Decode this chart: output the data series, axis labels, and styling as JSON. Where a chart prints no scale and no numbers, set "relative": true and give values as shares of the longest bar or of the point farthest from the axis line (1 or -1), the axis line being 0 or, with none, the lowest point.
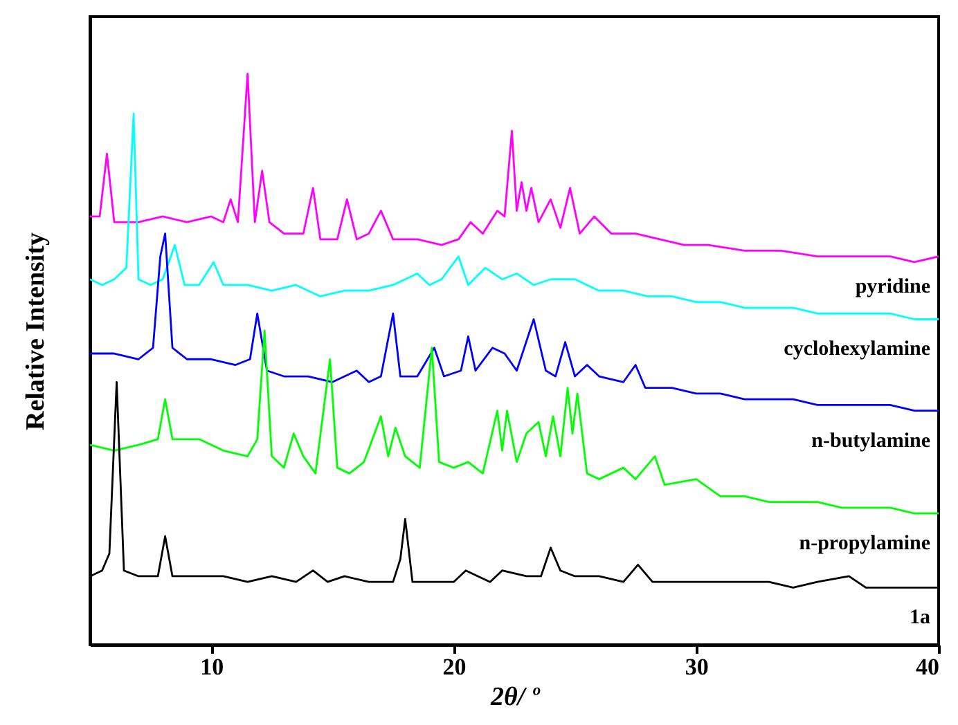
{
  "chart_data": {
    "type": "line",
    "relative": true,
    "xlabel": "2θ/ º",
    "ylabel": "Relative Intensity",
    "xlim": [
      5,
      40
    ],
    "xticks": [
      10,
      20,
      30,
      40
    ],
    "legend": false,
    "grid": false,
    "series": [
      {
        "name": "pyridine",
        "color": "#ff00ff",
        "x": [
          5,
          5.4,
          5.7,
          6.0,
          7.0,
          8.0,
          9.0,
          10.0,
          10.5,
          10.8,
          11.1,
          11.5,
          11.8,
          12.1,
          12.4,
          13.0,
          13.8,
          14.2,
          14.5,
          15.2,
          15.6,
          16.0,
          16.5,
          17.0,
          17.5,
          18.5,
          19.5,
          20.2,
          20.7,
          21.2,
          21.8,
          22.1,
          22.4,
          22.6,
          22.8,
          23.0,
          23.2,
          23.5,
          24.0,
          24.4,
          24.8,
          25.2,
          25.8,
          26.5,
          27.5,
          28.5,
          29.5,
          30.5,
          32.0,
          33.5,
          35.0,
          36.5,
          38.0,
          39.0,
          40.0
        ],
        "values": [
          0.75,
          0.75,
          0.86,
          0.74,
          0.74,
          0.75,
          0.74,
          0.75,
          0.74,
          0.78,
          0.74,
          1.0,
          0.74,
          0.83,
          0.74,
          0.72,
          0.72,
          0.8,
          0.71,
          0.71,
          0.78,
          0.71,
          0.72,
          0.76,
          0.71,
          0.71,
          0.7,
          0.71,
          0.74,
          0.72,
          0.76,
          0.75,
          0.9,
          0.76,
          0.81,
          0.76,
          0.8,
          0.74,
          0.78,
          0.73,
          0.8,
          0.72,
          0.75,
          0.72,
          0.72,
          0.71,
          0.7,
          0.7,
          0.69,
          0.69,
          0.68,
          0.68,
          0.68,
          0.67,
          0.68
        ]
      },
      {
        "name": "cyclohexylamine",
        "color": "#00ffff",
        "x": [
          5,
          5.5,
          6.0,
          6.5,
          6.8,
          7.0,
          7.5,
          8.0,
          8.5,
          8.9,
          9.5,
          10.1,
          10.5,
          11.5,
          12.5,
          13.5,
          14.5,
          15.5,
          16.5,
          17.5,
          18.5,
          19.0,
          19.5,
          20.2,
          20.6,
          21.3,
          22.0,
          22.6,
          23.3,
          24.0,
          25.0,
          26.0,
          27.0,
          28.0,
          29.0,
          30.0,
          31.0,
          32.0,
          33.0,
          34.0,
          35.0,
          36.0,
          37.0,
          38.0,
          39.0,
          40.0
        ],
        "values": [
          0.64,
          0.63,
          0.64,
          0.66,
          0.93,
          0.64,
          0.63,
          0.64,
          0.7,
          0.63,
          0.63,
          0.67,
          0.63,
          0.63,
          0.62,
          0.63,
          0.61,
          0.62,
          0.62,
          0.63,
          0.65,
          0.63,
          0.64,
          0.68,
          0.63,
          0.66,
          0.64,
          0.65,
          0.63,
          0.64,
          0.64,
          0.62,
          0.62,
          0.61,
          0.61,
          0.6,
          0.6,
          0.59,
          0.59,
          0.59,
          0.58,
          0.58,
          0.58,
          0.58,
          0.57,
          0.57
        ]
      },
      {
        "name": "n-butylamine",
        "color": "#0000ff",
        "x": [
          5,
          6,
          7,
          7.6,
          7.9,
          8.1,
          8.4,
          9.0,
          10.0,
          11.0,
          11.6,
          11.9,
          12.3,
          13.0,
          14.0,
          15.0,
          16.0,
          16.5,
          17.0,
          17.5,
          17.8,
          18.5,
          19.2,
          19.6,
          20.3,
          20.6,
          20.9,
          21.6,
          22.1,
          22.6,
          23.3,
          23.8,
          24.2,
          24.6,
          25.0,
          25.5,
          26.0,
          27.0,
          27.5,
          27.9,
          29.0,
          30.0,
          31.0,
          32.0,
          33.0,
          34.0,
          35.0,
          36.0,
          37.0,
          38.0,
          39.0,
          40.0
        ],
        "values": [
          0.51,
          0.51,
          0.5,
          0.52,
          0.68,
          0.72,
          0.52,
          0.5,
          0.5,
          0.49,
          0.5,
          0.58,
          0.48,
          0.47,
          0.47,
          0.46,
          0.48,
          0.46,
          0.47,
          0.58,
          0.47,
          0.47,
          0.52,
          0.47,
          0.48,
          0.54,
          0.48,
          0.52,
          0.51,
          0.48,
          0.57,
          0.48,
          0.47,
          0.53,
          0.47,
          0.49,
          0.47,
          0.46,
          0.49,
          0.45,
          0.45,
          0.44,
          0.44,
          0.43,
          0.43,
          0.43,
          0.42,
          0.42,
          0.42,
          0.42,
          0.41,
          0.41
        ]
      },
      {
        "name": "n-propylamine",
        "color": "#00ff00",
        "x": [
          5,
          6,
          7,
          7.8,
          8.1,
          8.4,
          9.5,
          10.5,
          11.5,
          11.9,
          12.2,
          12.5,
          13.0,
          13.4,
          13.8,
          14.3,
          14.9,
          15.2,
          15.7,
          16.3,
          17.0,
          17.3,
          17.6,
          18.0,
          18.6,
          19.1,
          19.4,
          20.0,
          20.6,
          21.2,
          21.8,
          22.0,
          22.2,
          22.6,
          23.0,
          23.5,
          23.8,
          24.1,
          24.4,
          24.7,
          24.9,
          25.1,
          25.5,
          26.0,
          27.0,
          27.5,
          28.3,
          28.7,
          30.0,
          31.0,
          32.0,
          33.0,
          34.0,
          35.0,
          36.0,
          37.0,
          38.0,
          39.0,
          40.0
        ],
        "values": [
          0.35,
          0.34,
          0.35,
          0.36,
          0.43,
          0.36,
          0.36,
          0.34,
          0.33,
          0.36,
          0.55,
          0.33,
          0.31,
          0.37,
          0.33,
          0.3,
          0.5,
          0.31,
          0.3,
          0.32,
          0.4,
          0.33,
          0.38,
          0.33,
          0.31,
          0.52,
          0.32,
          0.31,
          0.32,
          0.3,
          0.41,
          0.34,
          0.41,
          0.32,
          0.37,
          0.39,
          0.33,
          0.4,
          0.33,
          0.45,
          0.37,
          0.44,
          0.3,
          0.29,
          0.31,
          0.29,
          0.33,
          0.28,
          0.29,
          0.26,
          0.26,
          0.25,
          0.25,
          0.25,
          0.24,
          0.24,
          0.24,
          0.23,
          0.23
        ]
      },
      {
        "name": "1a",
        "color": "#000000",
        "x": [
          5.0,
          5.5,
          5.8,
          6.1,
          6.4,
          7.0,
          7.8,
          8.1,
          8.4,
          9.5,
          10.5,
          11.5,
          12.5,
          13.5,
          14.2,
          14.8,
          15.5,
          16.5,
          17.5,
          17.8,
          18.0,
          18.3,
          19.0,
          20.0,
          20.5,
          21.5,
          22.0,
          23.0,
          23.6,
          24.0,
          24.4,
          25.0,
          26.0,
          27.0,
          27.6,
          28.2,
          29.0,
          30.0,
          31.0,
          32.0,
          33.0,
          34.0,
          35.0,
          36.3,
          37.0,
          38.0,
          39.0,
          40.0
        ],
        "values": [
          0.12,
          0.13,
          0.16,
          0.46,
          0.13,
          0.12,
          0.12,
          0.19,
          0.12,
          0.12,
          0.12,
          0.11,
          0.12,
          0.11,
          0.13,
          0.11,
          0.12,
          0.11,
          0.11,
          0.15,
          0.22,
          0.11,
          0.11,
          0.11,
          0.13,
          0.11,
          0.13,
          0.12,
          0.12,
          0.17,
          0.13,
          0.12,
          0.12,
          0.11,
          0.14,
          0.11,
          0.11,
          0.11,
          0.11,
          0.11,
          0.11,
          0.1,
          0.11,
          0.12,
          0.1,
          0.1,
          0.1,
          0.1
        ]
      }
    ]
  }
}
